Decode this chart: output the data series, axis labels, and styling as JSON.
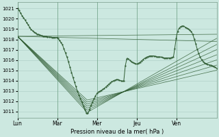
{
  "title": "Pression niveau de la mer( hPa )",
  "ylabel_ticks": [
    1011,
    1012,
    1013,
    1014,
    1015,
    1016,
    1017,
    1018,
    1019,
    1020,
    1021
  ],
  "ylim": [
    1010.4,
    1021.6
  ],
  "xlim": [
    0,
    120
  ],
  "day_tick_positions": [
    0,
    24,
    48,
    72,
    96
  ],
  "day_labels": [
    "Lun",
    "Mar",
    "Mer",
    "Jeu",
    "Ven"
  ],
  "bg_color": "#cce8e0",
  "grid_color": "#aaccC4",
  "line_color": "#2d5a30",
  "ensemble_lines": [
    {
      "pts_t": [
        0,
        120
      ],
      "pts_v": [
        1018.3,
        1018.5
      ]
    },
    {
      "pts_t": [
        0,
        120
      ],
      "pts_v": [
        1018.3,
        1017.8
      ]
    },
    {
      "pts_t": [
        0,
        42,
        120
      ],
      "pts_v": [
        1018.3,
        1010.9,
        1018.1
      ]
    },
    {
      "pts_t": [
        0,
        42,
        120
      ],
      "pts_v": [
        1018.3,
        1011.1,
        1017.5
      ]
    },
    {
      "pts_t": [
        0,
        42,
        120
      ],
      "pts_v": [
        1018.3,
        1011.3,
        1017.0
      ]
    },
    {
      "pts_t": [
        0,
        42,
        120
      ],
      "pts_v": [
        1018.3,
        1011.5,
        1016.5
      ]
    },
    {
      "pts_t": [
        0,
        42,
        120
      ],
      "pts_v": [
        1018.3,
        1011.7,
        1016.0
      ]
    },
    {
      "pts_t": [
        0,
        42,
        120
      ],
      "pts_v": [
        1018.3,
        1011.9,
        1015.5
      ]
    },
    {
      "pts_t": [
        0,
        42,
        120
      ],
      "pts_v": [
        1018.3,
        1012.1,
        1015.0
      ]
    }
  ],
  "main_line_pts": [
    [
      0,
      1021.0
    ],
    [
      1,
      1020.8
    ],
    [
      2,
      1020.5
    ],
    [
      4,
      1020.0
    ],
    [
      6,
      1019.5
    ],
    [
      8,
      1019.0
    ],
    [
      10,
      1018.7
    ],
    [
      12,
      1018.5
    ],
    [
      16,
      1018.3
    ],
    [
      20,
      1018.2
    ],
    [
      24,
      1018.2
    ],
    [
      27,
      1017.5
    ],
    [
      30,
      1016.2
    ],
    [
      33,
      1014.5
    ],
    [
      36,
      1013.0
    ],
    [
      39,
      1011.8
    ],
    [
      41,
      1011.0
    ],
    [
      42,
      1010.7
    ],
    [
      43,
      1011.0
    ],
    [
      44,
      1011.5
    ],
    [
      46,
      1012.2
    ],
    [
      48,
      1012.8
    ],
    [
      50,
      1013.0
    ],
    [
      52,
      1013.2
    ],
    [
      54,
      1013.5
    ],
    [
      56,
      1013.8
    ],
    [
      58,
      1014.0
    ],
    [
      60,
      1014.1
    ],
    [
      62,
      1014.0
    ],
    [
      64,
      1013.9
    ],
    [
      65,
      1015.5
    ],
    [
      66,
      1016.2
    ],
    [
      67,
      1016.1
    ],
    [
      68,
      1015.9
    ],
    [
      70,
      1015.7
    ],
    [
      72,
      1015.6
    ],
    [
      74,
      1015.8
    ],
    [
      76,
      1016.1
    ],
    [
      78,
      1016.3
    ],
    [
      80,
      1016.4
    ],
    [
      82,
      1016.4
    ],
    [
      84,
      1016.3
    ],
    [
      86,
      1016.3
    ],
    [
      88,
      1016.2
    ],
    [
      90,
      1016.2
    ],
    [
      92,
      1016.2
    ],
    [
      94,
      1016.3
    ],
    [
      96,
      1018.5
    ],
    [
      97,
      1019.0
    ],
    [
      98,
      1019.2
    ],
    [
      99,
      1019.3
    ],
    [
      100,
      1019.3
    ],
    [
      101,
      1019.2
    ],
    [
      102,
      1019.1
    ],
    [
      103,
      1019.0
    ],
    [
      104,
      1018.9
    ],
    [
      105,
      1018.7
    ],
    [
      106,
      1018.3
    ],
    [
      107,
      1017.8
    ],
    [
      108,
      1017.2
    ],
    [
      109,
      1016.7
    ],
    [
      110,
      1016.3
    ],
    [
      111,
      1016.0
    ],
    [
      112,
      1015.8
    ],
    [
      113,
      1015.7
    ],
    [
      114,
      1015.6
    ],
    [
      116,
      1015.5
    ],
    [
      118,
      1015.4
    ],
    [
      120,
      1015.2
    ]
  ]
}
